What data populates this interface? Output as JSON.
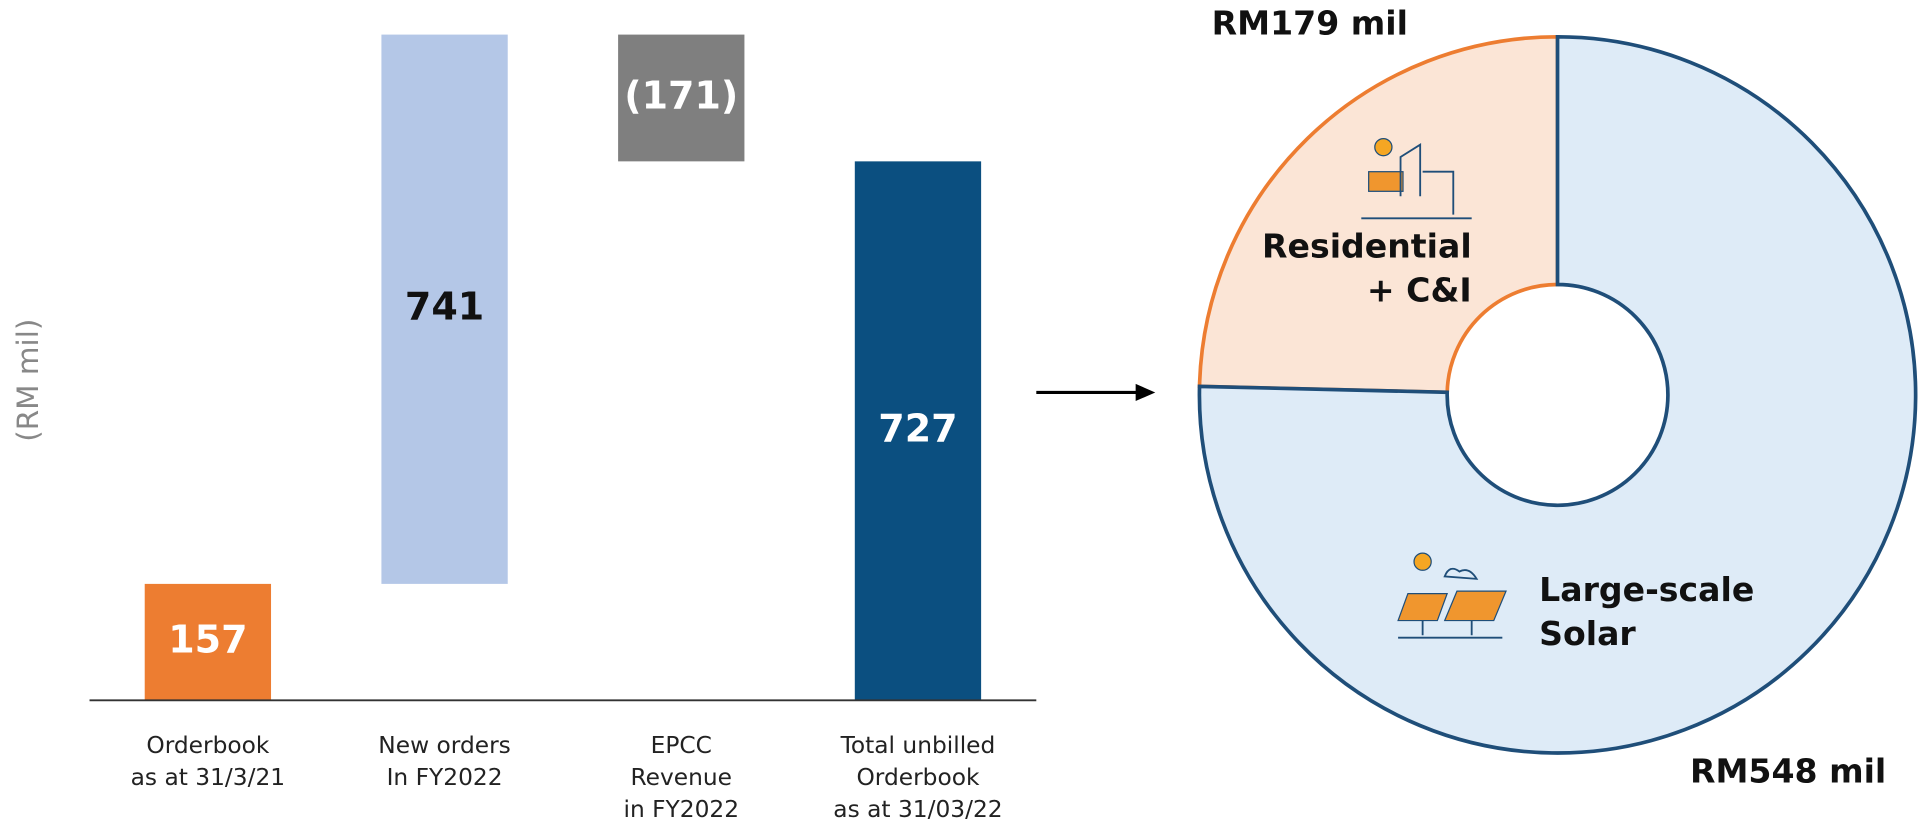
{
  "chart_data": [
    {
      "type": "waterfall",
      "y_axis_label": "(RM mil)",
      "categories": [
        "Orderbook\nas at 31/3/21",
        "New orders\nIn FY2022",
        "EPCC\nRevenue\nin FY2022",
        "Total unbilled\nOrderbook\nas at 31/03/22"
      ],
      "values": [
        157,
        741,
        -171,
        727
      ],
      "value_labels": [
        "157",
        "741",
        "(171)",
        "727"
      ],
      "totals": [
        false,
        false,
        false,
        true
      ],
      "colors": [
        "#ed7d31",
        "#b4c7e7",
        "#7f7f7f",
        "#0b4f80"
      ],
      "label_colors": [
        "#ffffff",
        "#111111",
        "#ffffff",
        "#ffffff"
      ],
      "ylim": [
        0,
        900
      ]
    },
    {
      "type": "pie",
      "donut": true,
      "direction": "counterclockwise",
      "categories": [
        "Residential\n+ C&I",
        "Large-scale\nSolar"
      ],
      "values": [
        179,
        548
      ],
      "value_labels": [
        "RM179 mil",
        "RM548 mil"
      ],
      "colors": [
        "#fbe5d6",
        "#deebf7"
      ],
      "edge_colors": [
        "#ed7d31",
        "#1f4e79"
      ]
    }
  ]
}
